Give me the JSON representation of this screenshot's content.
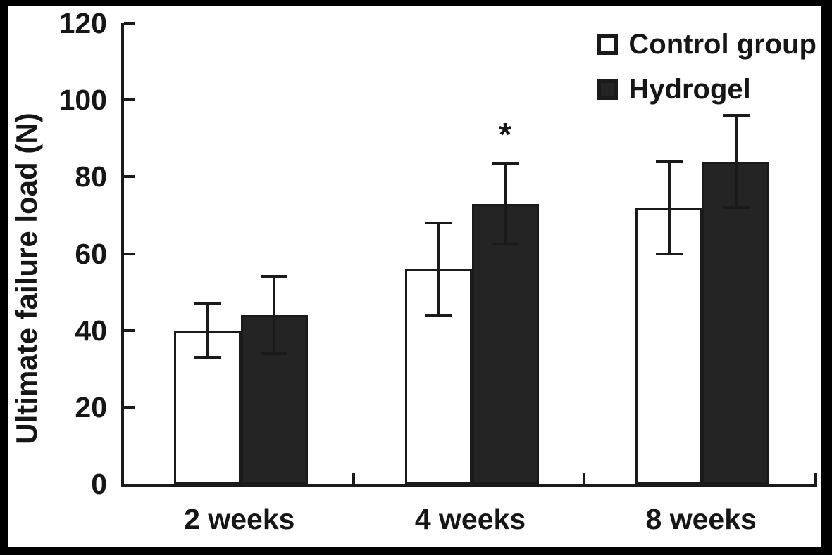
{
  "chart_data": {
    "type": "bar",
    "title": "",
    "ylabel": "Ultimate failure load (N)",
    "xlabel": "",
    "ylim": [
      0,
      120
    ],
    "yticks": [
      0,
      20,
      40,
      60,
      80,
      100,
      120
    ],
    "categories": [
      "2 weeks",
      "4 weeks",
      "8 weeks"
    ],
    "series": [
      {
        "name": "Control group",
        "fill": "#ffffff",
        "values": [
          40,
          56,
          72
        ],
        "errors": [
          7,
          12,
          12
        ]
      },
      {
        "name": "Hydrogel",
        "fill": "#242424",
        "values": [
          44,
          73,
          84
        ],
        "errors": [
          10,
          10.5,
          12
        ]
      }
    ],
    "annotations": [
      {
        "category": "4 weeks",
        "series": "Hydrogel",
        "text": "*"
      }
    ],
    "legend_position": "top-right",
    "grid": false,
    "error_bars": true
  },
  "colors": {
    "ink": "#1a1a1a",
    "bar_dark": "#242424",
    "bar_light": "#ffffff",
    "background": "#ffffff",
    "frame": "#000000"
  }
}
